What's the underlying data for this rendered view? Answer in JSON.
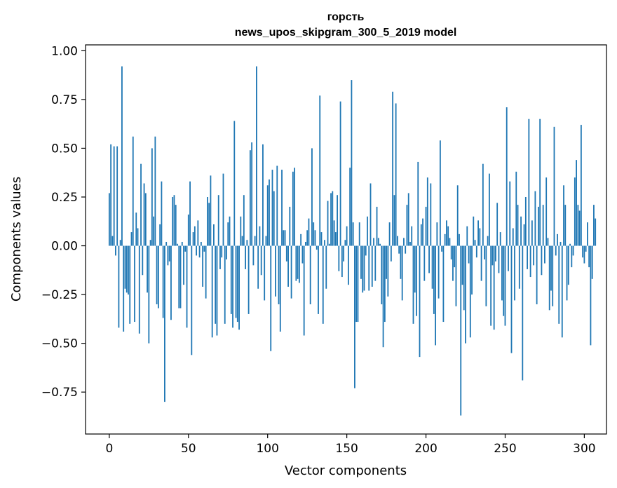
{
  "chart_data": {
    "type": "bar",
    "title": "горсть",
    "subtitle": "news_upos_skipgram_300_5_2019 model",
    "xlabel": "Vector components",
    "ylabel": "Components values",
    "xlim": [
      -15,
      314
    ],
    "ylim": [
      -0.965,
      1.03
    ],
    "x_ticks": [
      0,
      50,
      100,
      150,
      200,
      250,
      300
    ],
    "y_ticks": [
      -0.75,
      -0.5,
      -0.25,
      0.0,
      0.25,
      0.5,
      0.75,
      1.0
    ],
    "x_tick_labels": [
      "0",
      "50",
      "100",
      "150",
      "200",
      "250",
      "300"
    ],
    "y_tick_labels": [
      "−0.75",
      "−0.50",
      "−0.25",
      "0.00",
      "0.25",
      "0.50",
      "0.75",
      "1.00"
    ],
    "bar_color": "#1f77b4",
    "grid": false,
    "legend": "none",
    "values": [
      0.27,
      0.52,
      0.05,
      0.51,
      -0.05,
      0.51,
      -0.42,
      0.03,
      0.92,
      -0.44,
      -0.22,
      -0.24,
      -0.25,
      -0.4,
      0.07,
      0.56,
      -0.39,
      0.17,
      0.09,
      -0.45,
      0.42,
      -0.15,
      0.32,
      0.27,
      -0.24,
      -0.5,
      0.03,
      0.5,
      0.15,
      0.56,
      -0.3,
      -0.32,
      0.11,
      0.33,
      -0.37,
      -0.8,
      0.02,
      -0.1,
      -0.08,
      -0.38,
      0.25,
      0.26,
      0.21,
      0.01,
      -0.32,
      -0.32,
      0.02,
      -0.2,
      -0.03,
      -0.42,
      0.16,
      0.33,
      -0.56,
      0.07,
      0.1,
      -0.05,
      0.13,
      -0.06,
      0.02,
      -0.21,
      -0.03,
      -0.27,
      0.25,
      0.22,
      0.36,
      -0.47,
      0.11,
      -0.4,
      -0.46,
      0.26,
      -0.12,
      -0.06,
      0.37,
      -0.4,
      -0.07,
      0.12,
      0.15,
      -0.35,
      -0.42,
      0.64,
      -0.37,
      -0.39,
      -0.43,
      0.15,
      0.05,
      0.26,
      -0.12,
      0.03,
      -0.35,
      0.49,
      0.53,
      -0.1,
      0.05,
      0.92,
      -0.22,
      0.1,
      -0.15,
      0.52,
      -0.28,
      0.05,
      0.31,
      0.34,
      -0.54,
      0.39,
      0.28,
      -0.26,
      0.41,
      -0.3,
      -0.44,
      0.39,
      0.08,
      0.08,
      -0.08,
      -0.21,
      0.2,
      -0.27,
      0.38,
      0.4,
      -0.18,
      -0.17,
      -0.19,
      0.06,
      -0.09,
      -0.46,
      0.02,
      0.08,
      0.14,
      -0.3,
      0.5,
      0.12,
      0.08,
      -0.02,
      -0.35,
      0.77,
      0.07,
      -0.4,
      0.03,
      -0.22,
      0.23,
      0.01,
      0.27,
      0.28,
      0.13,
      0.07,
      0.26,
      -0.13,
      0.74,
      -0.16,
      -0.08,
      0.03,
      0.1,
      -0.2,
      0.4,
      0.85,
      0.12,
      -0.73,
      -0.39,
      -0.39,
      0.12,
      -0.17,
      -0.24,
      -0.23,
      -0.05,
      0.15,
      -0.23,
      0.32,
      -0.21,
      0.04,
      -0.18,
      0.2,
      0.04,
      0.01,
      -0.3,
      -0.52,
      -0.39,
      -0.17,
      -0.26,
      0.12,
      -0.08,
      0.79,
      0.26,
      0.73,
      0.05,
      -0.04,
      -0.17,
      -0.28,
      0.04,
      -0.04,
      0.21,
      0.27,
      0.02,
      0.1,
      -0.4,
      -0.24,
      -0.36,
      0.43,
      -0.57,
      0.11,
      0.14,
      -0.18,
      0.2,
      0.35,
      -0.14,
      0.32,
      -0.22,
      -0.35,
      -0.51,
      0.12,
      -0.27,
      0.54,
      -0.03,
      -0.39,
      0.06,
      0.13,
      0.1,
      0.04,
      -0.07,
      -0.18,
      -0.11,
      -0.31,
      0.31,
      0.06,
      -0.87,
      -0.2,
      -0.33,
      -0.5,
      0.1,
      -0.09,
      -0.47,
      -0.25,
      0.15,
      0.03,
      -0.06,
      0.13,
      0.09,
      -0.18,
      0.42,
      -0.07,
      -0.31,
      0.05,
      0.37,
      -0.41,
      -0.1,
      -0.43,
      -0.08,
      0.22,
      -0.14,
      0.07,
      -0.28,
      -0.36,
      -0.41,
      0.71,
      -0.13,
      0.33,
      -0.55,
      0.09,
      -0.28,
      0.38,
      0.21,
      -0.22,
      0.15,
      -0.69,
      0.11,
      0.25,
      -0.12,
      0.65,
      -0.16,
      0.13,
      -0.1,
      0.28,
      -0.3,
      0.2,
      0.65,
      -0.15,
      0.21,
      -0.09,
      0.35,
      0.04,
      -0.33,
      -0.23,
      -0.31,
      0.61,
      -0.05,
      0.06,
      -0.4,
      0.02,
      -0.47,
      0.31,
      0.21,
      -0.28,
      -0.2,
      0.01,
      -0.11,
      -0.05,
      0.35,
      0.44,
      0.21,
      0.18,
      0.62,
      -0.06,
      -0.09,
      -0.03,
      0.12,
      -0.11,
      -0.51,
      -0.17,
      0.21,
      0.14
    ]
  }
}
